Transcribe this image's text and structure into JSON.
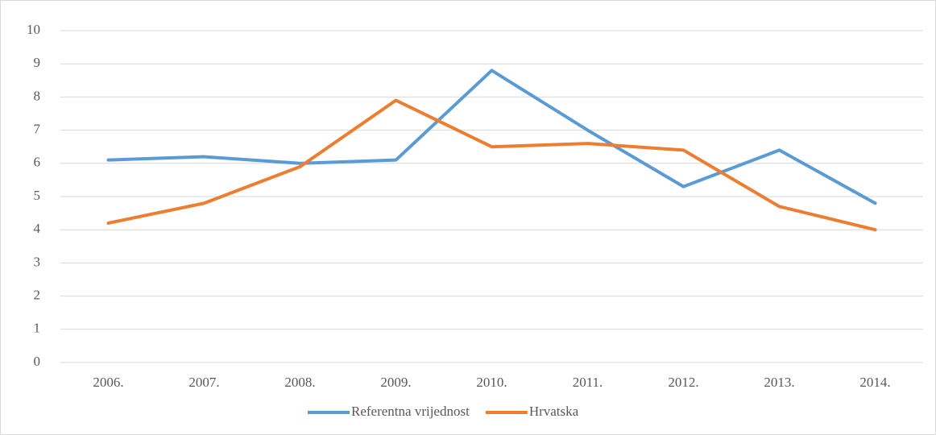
{
  "chart_data": {
    "type": "line",
    "categories": [
      "2006.",
      "2007.",
      "2008.",
      "2009.",
      "2010.",
      "2011.",
      "2012.",
      "2013.",
      "2014."
    ],
    "series": [
      {
        "name": "Referentna vrijednost",
        "color": "#5b9bd5",
        "values": [
          6.1,
          6.2,
          6.0,
          6.1,
          8.8,
          7.0,
          5.3,
          6.4,
          4.8
        ]
      },
      {
        "name": "Hrvatska",
        "color": "#ed7d31",
        "values": [
          4.2,
          4.8,
          5.9,
          7.9,
          6.5,
          6.6,
          6.4,
          4.7,
          4.0
        ]
      }
    ],
    "ylim": [
      0,
      10
    ],
    "yticks": [
      0,
      1,
      2,
      3,
      4,
      5,
      6,
      7,
      8,
      9,
      10
    ],
    "grid": true,
    "legend": "bottom"
  }
}
